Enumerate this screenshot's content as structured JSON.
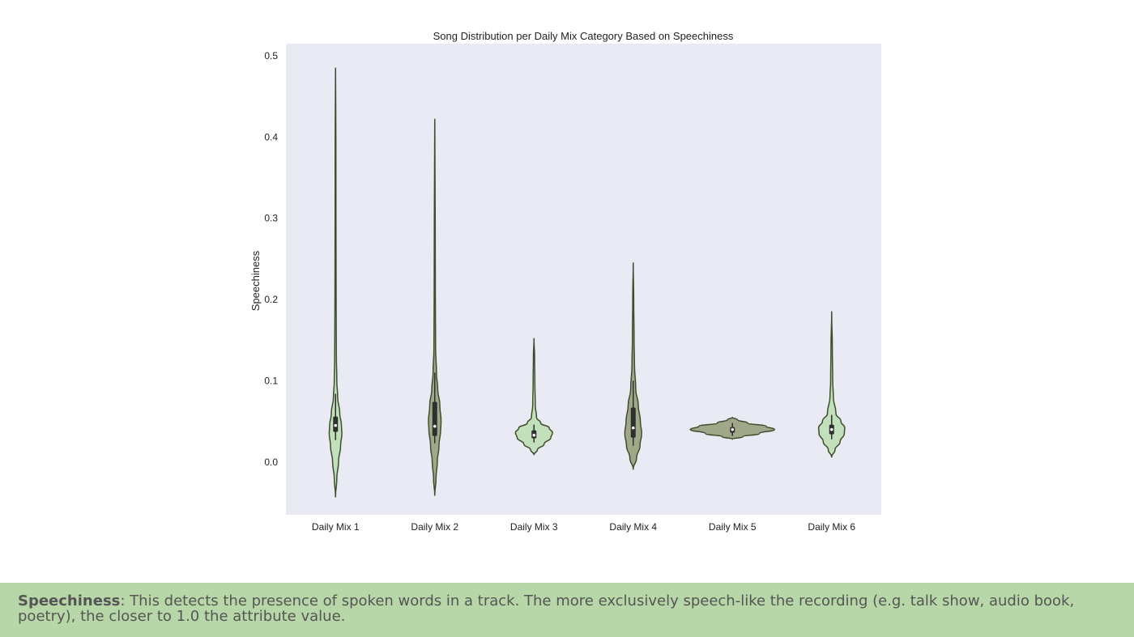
{
  "chart_data": {
    "type": "violin",
    "title": "Song Distribution per Daily Mix Category Based on Speechiness",
    "xlabel": "",
    "ylabel": "Speechiness",
    "ylim": [
      -0.065,
      0.515
    ],
    "yticks": [
      "0.0",
      "0.1",
      "0.2",
      "0.3",
      "0.4",
      "0.5"
    ],
    "ytick_values": [
      0.0,
      0.1,
      0.2,
      0.3,
      0.4,
      0.5
    ],
    "grid": false,
    "categories": [
      "Daily Mix 1",
      "Daily Mix 2",
      "Daily Mix 3",
      "Daily Mix 4",
      "Daily Mix 5",
      "Daily Mix 6"
    ],
    "series": [
      {
        "min": -0.043,
        "max": 0.485,
        "q1": 0.037,
        "median": 0.045,
        "q3": 0.056,
        "whisker_low": 0.027,
        "whisker_high": 0.084,
        "color": "#c3e0bd",
        "profile": [
          [
            -0.043,
            0.0
          ],
          [
            -0.02,
            1.5
          ],
          [
            0.0,
            3.5
          ],
          [
            0.02,
            6.0
          ],
          [
            0.035,
            7.5
          ],
          [
            0.045,
            7.0
          ],
          [
            0.06,
            5.0
          ],
          [
            0.08,
            2.5
          ],
          [
            0.1,
            1.5
          ],
          [
            0.13,
            1.0
          ],
          [
            0.2,
            0.7
          ],
          [
            0.3,
            0.5
          ],
          [
            0.4,
            0.4
          ],
          [
            0.485,
            0.0
          ]
        ]
      },
      {
        "min": -0.041,
        "max": 0.422,
        "q1": 0.032,
        "median": 0.044,
        "q3": 0.074,
        "whisker_low": 0.023,
        "whisker_high": 0.11,
        "color": "#a1a889",
        "profile": [
          [
            -0.041,
            0.0
          ],
          [
            -0.02,
            1.5
          ],
          [
            0.0,
            3.0
          ],
          [
            0.02,
            5.0
          ],
          [
            0.04,
            7.0
          ],
          [
            0.05,
            7.5
          ],
          [
            0.07,
            6.0
          ],
          [
            0.09,
            3.5
          ],
          [
            0.11,
            2.0
          ],
          [
            0.14,
            1.0
          ],
          [
            0.2,
            0.7
          ],
          [
            0.3,
            0.5
          ],
          [
            0.422,
            0.0
          ]
        ]
      },
      {
        "min": 0.009,
        "max": 0.152,
        "q1": 0.029,
        "median": 0.033,
        "q3": 0.039,
        "whisker_low": 0.024,
        "whisker_high": 0.046,
        "color": "#c3e0bd",
        "profile": [
          [
            0.009,
            0.0
          ],
          [
            0.015,
            4.0
          ],
          [
            0.022,
            12.0
          ],
          [
            0.03,
            20.0
          ],
          [
            0.036,
            22.0
          ],
          [
            0.042,
            18.0
          ],
          [
            0.048,
            8.0
          ],
          [
            0.055,
            3.0
          ],
          [
            0.07,
            1.5
          ],
          [
            0.1,
            1.0
          ],
          [
            0.13,
            0.7
          ],
          [
            0.152,
            0.0
          ]
        ]
      },
      {
        "min": -0.009,
        "max": 0.245,
        "q1": 0.03,
        "median": 0.042,
        "q3": 0.067,
        "whisker_low": 0.02,
        "whisker_high": 0.1,
        "color": "#a1a889",
        "profile": [
          [
            -0.009,
            0.0
          ],
          [
            0.005,
            4.0
          ],
          [
            0.02,
            8.0
          ],
          [
            0.035,
            10.0
          ],
          [
            0.05,
            8.5
          ],
          [
            0.07,
            6.0
          ],
          [
            0.09,
            3.0
          ],
          [
            0.12,
            1.5
          ],
          [
            0.15,
            1.0
          ],
          [
            0.2,
            0.6
          ],
          [
            0.245,
            0.0
          ]
        ]
      },
      {
        "min": 0.028,
        "max": 0.055,
        "q1": 0.036,
        "median": 0.04,
        "q3": 0.043,
        "whisker_low": 0.032,
        "whisker_high": 0.048,
        "color": "#a1a889",
        "profile": [
          [
            0.028,
            0.0
          ],
          [
            0.031,
            12.0
          ],
          [
            0.035,
            32.0
          ],
          [
            0.04,
            50.0
          ],
          [
            0.044,
            40.0
          ],
          [
            0.048,
            18.0
          ],
          [
            0.052,
            6.0
          ],
          [
            0.055,
            0.0
          ]
        ]
      },
      {
        "min": 0.006,
        "max": 0.185,
        "q1": 0.034,
        "median": 0.04,
        "q3": 0.046,
        "whisker_low": 0.028,
        "whisker_high": 0.058,
        "color": "#c3e0bd",
        "profile": [
          [
            0.006,
            0.0
          ],
          [
            0.015,
            4.0
          ],
          [
            0.025,
            10.0
          ],
          [
            0.035,
            15.0
          ],
          [
            0.042,
            15.5
          ],
          [
            0.05,
            11.0
          ],
          [
            0.06,
            5.0
          ],
          [
            0.08,
            2.0
          ],
          [
            0.1,
            1.2
          ],
          [
            0.14,
            0.8
          ],
          [
            0.185,
            0.0
          ]
        ]
      }
    ]
  },
  "caption": {
    "term": "Speechiness",
    "text": ": This detects the presence of spoken words in a track. The more exclusively speech-like the recording (e.g. talk show, audio book, poetry), the closer to 1.0 the attribute value."
  },
  "colors": {
    "plot_background": "#e9eaf3",
    "outline": "#3e4d2c",
    "box": "#2f2f2f",
    "caption_background": "#b7d7a8"
  }
}
